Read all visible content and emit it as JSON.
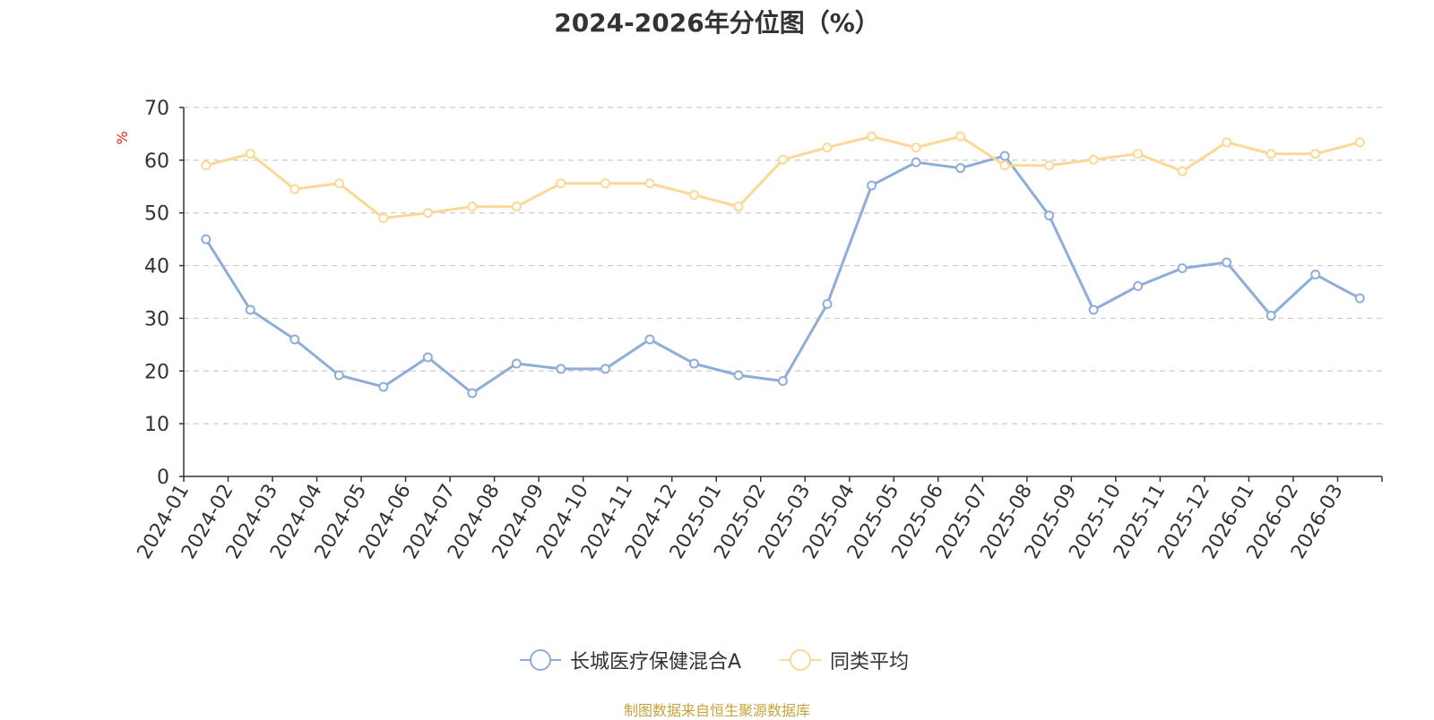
{
  "chart_data": {
    "type": "line",
    "title": "2024-2026年分位图（%）",
    "ylabel": "%",
    "xlabel": "",
    "ylim": [
      0,
      70
    ],
    "yticks": [
      0,
      10,
      20,
      30,
      40,
      50,
      60,
      70
    ],
    "grid": true,
    "legend_position": "bottom",
    "categories": [
      "2024-01",
      "2024-02",
      "2024-03",
      "2024-04",
      "2024-05",
      "2024-06",
      "2024-07",
      "2024-08",
      "2024-09",
      "2024-10",
      "2024-11",
      "2024-12",
      "2025-01",
      "2025-02",
      "2025-03",
      "2025-04",
      "2025-05",
      "2025-06",
      "2025-07",
      "2025-08",
      "2025-09",
      "2025-10",
      "2025-11",
      "2025-12",
      "2026-01",
      "2026-02",
      "2026-03"
    ],
    "series": [
      {
        "name": "长城医疗保健混合A",
        "color": "#8eadd9",
        "values": [
          45.0,
          31.6,
          26.0,
          19.2,
          17.0,
          22.6,
          15.8,
          21.4,
          20.4,
          20.4,
          26.0,
          21.4,
          19.2,
          18.1,
          32.7,
          55.2,
          59.6,
          58.5,
          60.8,
          49.5,
          31.6,
          36.1,
          39.5,
          40.6,
          30.5,
          38.3,
          33.8
        ]
      },
      {
        "name": "同类平均",
        "color": "#fcd896",
        "values": [
          59.0,
          61.2,
          54.5,
          55.6,
          49.0,
          50.0,
          51.2,
          51.2,
          55.6,
          55.6,
          55.6,
          53.4,
          51.2,
          60.1,
          62.4,
          64.5,
          62.4,
          64.5,
          59.0,
          59.0,
          60.1,
          61.2,
          57.9,
          63.4,
          61.2,
          61.2,
          63.4
        ]
      }
    ]
  },
  "source_note": "制图数据来自恒生聚源数据库"
}
